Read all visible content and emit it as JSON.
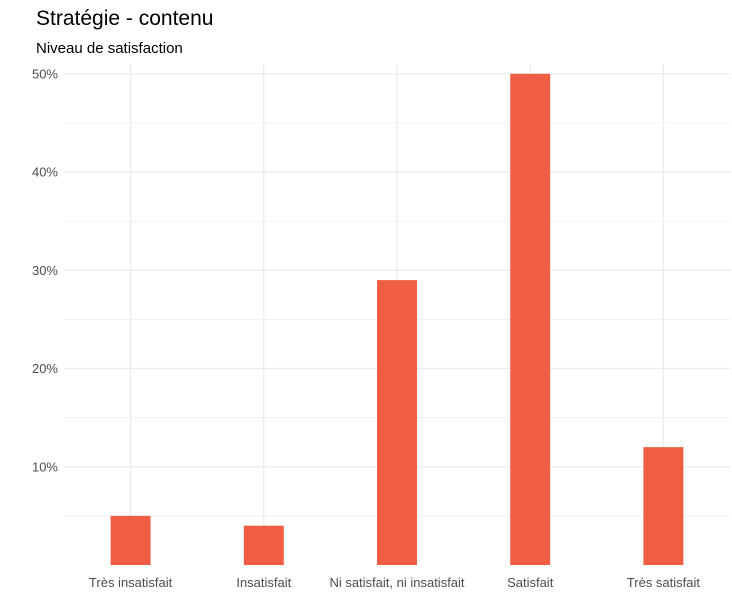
{
  "chart_data": {
    "type": "bar",
    "title": "Stratégie - contenu",
    "subtitle": "Niveau de satisfaction",
    "xlabel": "",
    "ylabel": "",
    "categories": [
      "Très insatisfait",
      "Insatisfait",
      "Ni satisfait, ni insatisfait",
      "Satisfait",
      "Très satisfait"
    ],
    "values": [
      5,
      4,
      29,
      50,
      12
    ],
    "unit": "%",
    "ylim": [
      0,
      51
    ],
    "yticks": [
      10,
      20,
      30,
      40,
      50
    ],
    "ytick_labels": [
      "10%",
      "20%",
      "30%",
      "40%",
      "50%"
    ],
    "grid": true,
    "legend": "none",
    "bar_color": "#ef5d43",
    "grid_color": "#ebebeb"
  }
}
